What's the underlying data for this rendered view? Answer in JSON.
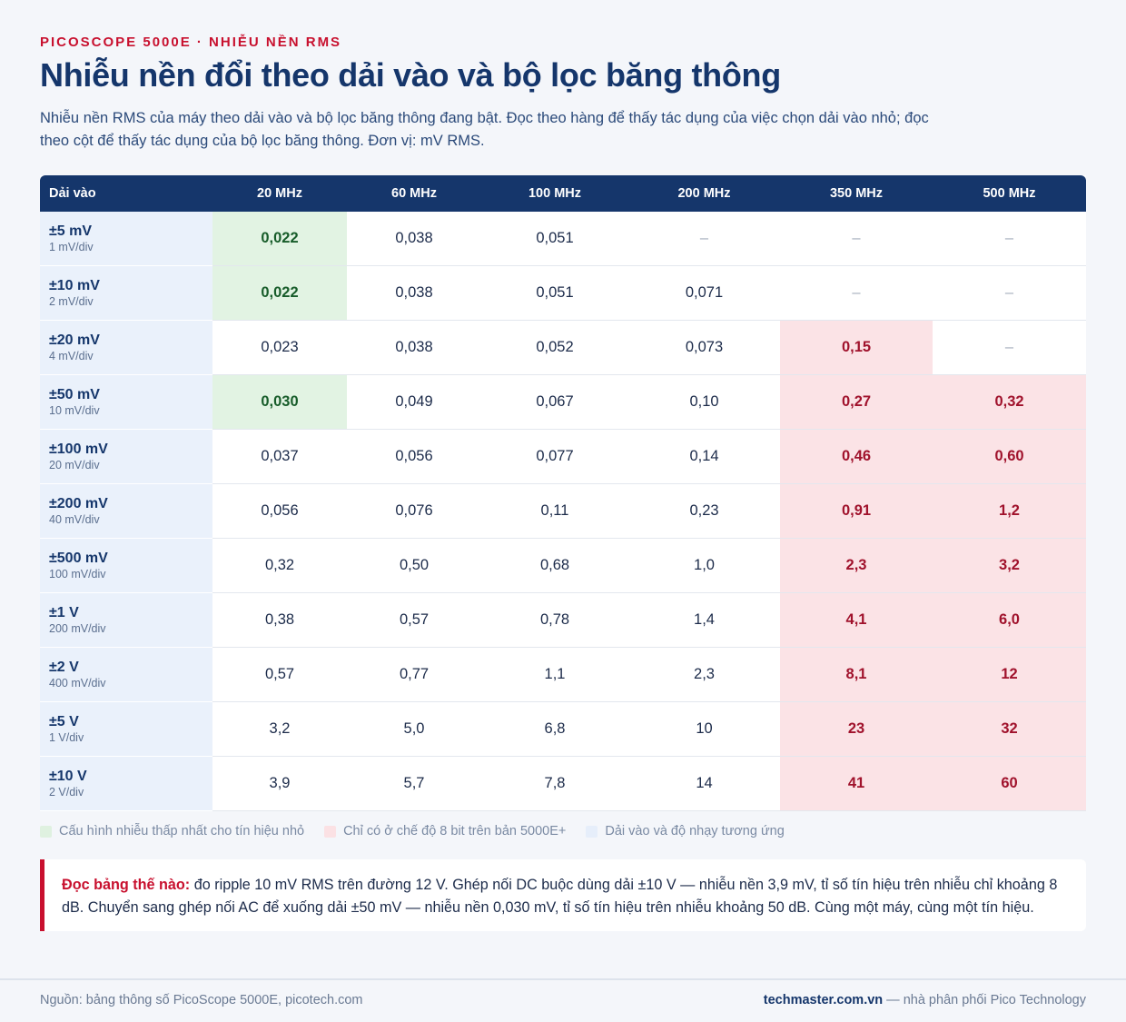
{
  "header": {
    "kicker": "PICOSCOPE 5000E · NHIỄU NỀN RMS",
    "title": "Nhiễu nền đổi theo dải vào và bộ lọc băng thông",
    "subtitle": "Nhiễu nền RMS của máy theo dải vào và bộ lọc băng thông đang bật. Đọc theo hàng để thấy tác dụng của việc chọn dải vào nhỏ; đọc theo cột để thấy tác dụng của bộ lọc băng thông. Đơn vị: mV RMS."
  },
  "table": {
    "range_header": "Dải vào",
    "columns": [
      "20 MHz",
      "60 MHz",
      "100 MHz",
      "200 MHz",
      "350 MHz",
      "500 MHz"
    ],
    "rows": [
      {
        "range": "±5 mV",
        "sens": "1 mV/div",
        "values": [
          "0,022",
          "0,038",
          "0,051",
          "–",
          "–",
          "–"
        ],
        "hl": [
          "green",
          "",
          "",
          "na",
          "na",
          "na"
        ]
      },
      {
        "range": "±10 mV",
        "sens": "2 mV/div",
        "values": [
          "0,022",
          "0,038",
          "0,051",
          "0,071",
          "–",
          "–"
        ],
        "hl": [
          "green",
          "",
          "",
          "",
          "na",
          "na"
        ]
      },
      {
        "range": "±20 mV",
        "sens": "4 mV/div",
        "values": [
          "0,023",
          "0,038",
          "0,052",
          "0,073",
          "0,15",
          "–"
        ],
        "hl": [
          "",
          "",
          "",
          "",
          "red",
          "na"
        ]
      },
      {
        "range": "±50 mV",
        "sens": "10 mV/div",
        "values": [
          "0,030",
          "0,049",
          "0,067",
          "0,10",
          "0,27",
          "0,32"
        ],
        "hl": [
          "green",
          "",
          "",
          "",
          "red",
          "red"
        ]
      },
      {
        "range": "±100 mV",
        "sens": "20 mV/div",
        "values": [
          "0,037",
          "0,056",
          "0,077",
          "0,14",
          "0,46",
          "0,60"
        ],
        "hl": [
          "",
          "",
          "",
          "",
          "red",
          "red"
        ]
      },
      {
        "range": "±200 mV",
        "sens": "40 mV/div",
        "values": [
          "0,056",
          "0,076",
          "0,11",
          "0,23",
          "0,91",
          "1,2"
        ],
        "hl": [
          "",
          "",
          "",
          "",
          "red",
          "red"
        ]
      },
      {
        "range": "±500 mV",
        "sens": "100 mV/div",
        "values": [
          "0,32",
          "0,50",
          "0,68",
          "1,0",
          "2,3",
          "3,2"
        ],
        "hl": [
          "",
          "",
          "",
          "",
          "red",
          "red"
        ]
      },
      {
        "range": "±1 V",
        "sens": "200 mV/div",
        "values": [
          "0,38",
          "0,57",
          "0,78",
          "1,4",
          "4,1",
          "6,0"
        ],
        "hl": [
          "",
          "",
          "",
          "",
          "red",
          "red"
        ]
      },
      {
        "range": "±2 V",
        "sens": "400 mV/div",
        "values": [
          "0,57",
          "0,77",
          "1,1",
          "2,3",
          "8,1",
          "12"
        ],
        "hl": [
          "",
          "",
          "",
          "",
          "red",
          "red"
        ]
      },
      {
        "range": "±5 V",
        "sens": "1 V/div",
        "values": [
          "3,2",
          "5,0",
          "6,8",
          "10",
          "23",
          "32"
        ],
        "hl": [
          "",
          "",
          "",
          "",
          "red",
          "red"
        ]
      },
      {
        "range": "±10 V",
        "sens": "2 V/div",
        "values": [
          "3,9",
          "5,7",
          "7,8",
          "14",
          "41",
          "60"
        ],
        "hl": [
          "",
          "",
          "",
          "",
          "red",
          "red"
        ]
      }
    ]
  },
  "legend": {
    "green": "Cấu hình nhiễu thấp nhất cho tín hiệu nhỏ",
    "red": "Chỉ có ở chế độ 8 bit trên bản 5000E+",
    "blue": "Dải vào và độ nhạy tương ứng"
  },
  "note": {
    "label": "Đọc bảng thế nào:",
    "text": " đo ripple 10 mV RMS trên đường 12 V. Ghép nối DC buộc dùng dải ±10 V — nhiễu nền 3,9 mV, tỉ số tín hiệu trên nhiễu chỉ khoảng 8 dB. Chuyển sang ghép nối AC để xuống dải ±50 mV — nhiễu nền 0,030 mV, tỉ số tín hiệu trên nhiễu khoảng 50 dB. Cùng một máy, cùng một tín hiệu."
  },
  "footer": {
    "source": "Nguồn: bảng thông số PicoScope 5000E, picotech.com",
    "brand": "techmaster.com.vn",
    "distributor": " — nhà phân phối Pico Technology"
  },
  "colors": {
    "navy": "#15366b",
    "accent_red": "#c8102e",
    "green_highlight": "#e2f3e3",
    "red_highlight": "#fbe3e6",
    "range_column": "#eaf1fb"
  }
}
